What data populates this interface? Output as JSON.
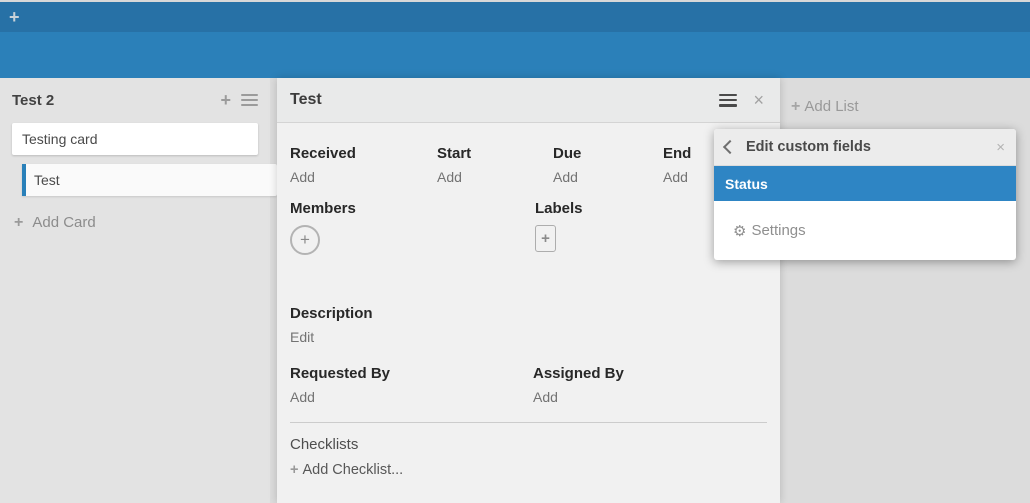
{
  "icons": {
    "plus": "+",
    "close": "×",
    "gear": "⚙"
  },
  "topbar": {
    "add_board_icon": "+"
  },
  "list": {
    "title": "Test 2",
    "cards": [
      {
        "title": "Testing card"
      },
      {
        "title": "Test",
        "selected": true
      }
    ],
    "add_card_label": "Add Card"
  },
  "board": {
    "add_list_label": "Add List"
  },
  "card_detail": {
    "title": "Test",
    "fields": [
      {
        "label": "Received",
        "action": "Add"
      },
      {
        "label": "Start",
        "action": "Add"
      },
      {
        "label": "Due",
        "action": "Add"
      },
      {
        "label": "End",
        "action": "Add"
      }
    ],
    "members": {
      "label": "Members"
    },
    "labels": {
      "label": "Labels"
    },
    "description": {
      "label": "Description",
      "action": "Edit"
    },
    "requested_by": {
      "label": "Requested By",
      "action": "Add"
    },
    "assigned_by": {
      "label": "Assigned By",
      "action": "Add"
    },
    "checklists": {
      "label": "Checklists",
      "add_label": "Add Checklist..."
    }
  },
  "popup": {
    "title": "Edit custom fields",
    "items": [
      {
        "label": "Status",
        "selected": true
      }
    ],
    "settings_label": "Settings"
  },
  "colors": {
    "topbar": "#2771a6",
    "board_header": "#2b80b9",
    "board_bg": "#dcdcdc",
    "list_bg": "#e3e3e3",
    "detail_bg": "#f1f1f1",
    "selected_item": "#2e85c4",
    "card_accent": "#2980b9"
  }
}
